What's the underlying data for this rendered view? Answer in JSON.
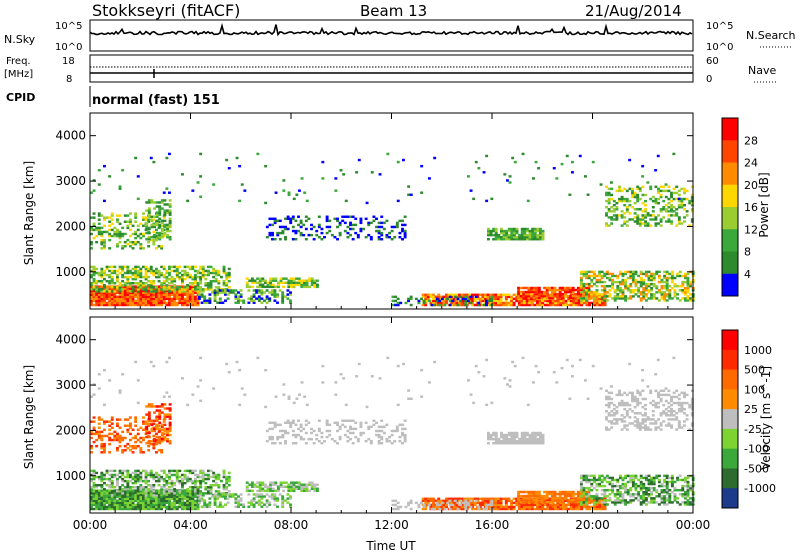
{
  "header": {
    "station": "Stokkseyri (fitACF)",
    "beam": "Beam 13",
    "date": "21/Aug/2014"
  },
  "labels": {
    "nsky": "N.Sky",
    "nsky_top": "10^5",
    "nsky_bottom": "10^0",
    "nsearch": "N.Search",
    "nsearch_top": "10^5",
    "nsearch_bottom": "10^0",
    "freq_line1": "Freq.",
    "freq_line2": "[MHz]",
    "freq_top": "18",
    "freq_bottom": "8",
    "nave": "Nave",
    "nave_top": "60",
    "nave_bottom": "0",
    "cpid": "CPID",
    "cpid_value": "normal (fast) 151"
  },
  "colors": {
    "power_scale": [
      "#0000ff",
      "#2d8a2d",
      "#3aa83a",
      "#9acd32",
      "#ffd700",
      "#ff8c00",
      "#ff4500",
      "#ff0000"
    ],
    "velocity_scale": [
      "#1e3a8a",
      "#2e6b2e",
      "#3aa83a",
      "#7cd332",
      "#bebebe",
      "#ff8c00",
      "#ff6a00",
      "#ff2a00",
      "#ff0000"
    ],
    "ground": "#bebebe"
  },
  "chart_data": [
    {
      "type": "heatmap",
      "name": "power",
      "ylabel": "Slant Range [km]",
      "yticks": [
        "1000",
        "2000",
        "3000",
        "4000"
      ],
      "ylim": [
        180,
        4500
      ],
      "xticks": [
        "00:00",
        "04:00",
        "08:00",
        "12:00",
        "16:00",
        "20:00",
        "00:00"
      ],
      "colorbar_label": "Power [dB]",
      "colorbar_ticks": [
        "4",
        "8",
        "12",
        "16",
        "20",
        "24",
        "28"
      ]
    },
    {
      "type": "heatmap",
      "name": "velocity",
      "ylabel": "Slant Range [km]",
      "yticks": [
        "1000",
        "2000",
        "3000",
        "4000"
      ],
      "ylim": [
        180,
        4500
      ],
      "xticks": [
        "00:00",
        "04:00",
        "08:00",
        "12:00",
        "16:00",
        "20:00",
        "00:00"
      ],
      "xlabel": "Time UT",
      "colorbar_label": "Velocity [m s^-1]",
      "colorbar_ticks": [
        "1000",
        "500",
        "100",
        "25",
        "-25",
        "-100",
        "-500",
        "-1000"
      ]
    }
  ]
}
